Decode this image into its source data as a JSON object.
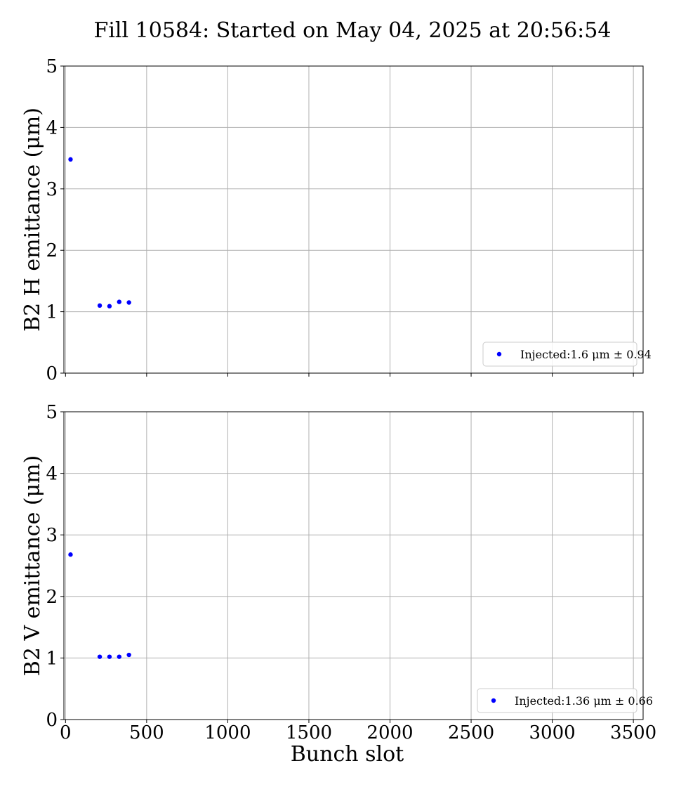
{
  "figure": {
    "title": "Fill 10584: Started on May 04, 2025 at 20:56:54"
  },
  "chart_data": [
    {
      "type": "scatter",
      "title": "",
      "xlabel": "",
      "ylabel": "B2 H emittance (μm)",
      "xlim": [
        -10,
        3560
      ],
      "ylim": [
        0,
        5
      ],
      "xticks": [
        0,
        500,
        1000,
        1500,
        2000,
        2500,
        3000,
        3500
      ],
      "yticks": [
        0,
        1,
        2,
        3,
        4,
        5
      ],
      "x_tick_labels_shown": false,
      "grid": true,
      "legend_position": "lower-right",
      "series": [
        {
          "name": "Injected:1.6 μm ± 0.94",
          "color": "#0000ff",
          "x": [
            31,
            211,
            271,
            331,
            391
          ],
          "y": [
            3.48,
            1.1,
            1.09,
            1.16,
            1.15
          ]
        }
      ]
    },
    {
      "type": "scatter",
      "title": "",
      "xlabel": "Bunch slot",
      "ylabel": "B2 V emittance (μm)",
      "xlim": [
        -10,
        3560
      ],
      "ylim": [
        0,
        5
      ],
      "xticks": [
        0,
        500,
        1000,
        1500,
        2000,
        2500,
        3000,
        3500
      ],
      "yticks": [
        0,
        1,
        2,
        3,
        4,
        5
      ],
      "x_tick_labels_shown": true,
      "grid": true,
      "legend_position": "lower-right",
      "series": [
        {
          "name": "Injected:1.36 μm ± 0.66",
          "color": "#0000ff",
          "x": [
            31,
            211,
            271,
            331,
            391
          ],
          "y": [
            2.68,
            1.02,
            1.02,
            1.02,
            1.05
          ]
        }
      ]
    }
  ]
}
